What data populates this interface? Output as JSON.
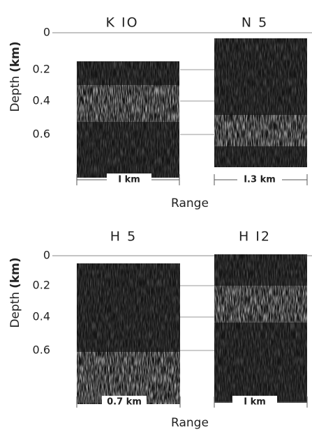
{
  "figures": [
    {
      "panels": [
        {
          "title": "K IO",
          "scale_label": "I km"
        },
        {
          "title": "N 5",
          "scale_label": "I.3 km"
        }
      ],
      "y_axis": {
        "label": "Depth",
        "unit": "(km)",
        "ticks": [
          "0",
          "0.2",
          "0.4",
          "0.6"
        ]
      },
      "x_axis": {
        "label": "Range"
      }
    },
    {
      "panels": [
        {
          "title": "H 5",
          "scale_label": "0.7 km"
        },
        {
          "title": "H I2",
          "scale_label": "I km"
        }
      ],
      "y_axis": {
        "label": "Depth",
        "unit": "(km)",
        "ticks": [
          "0",
          "0.2",
          "0.4",
          "0.6"
        ]
      },
      "x_axis": {
        "label": "Range"
      }
    }
  ]
}
